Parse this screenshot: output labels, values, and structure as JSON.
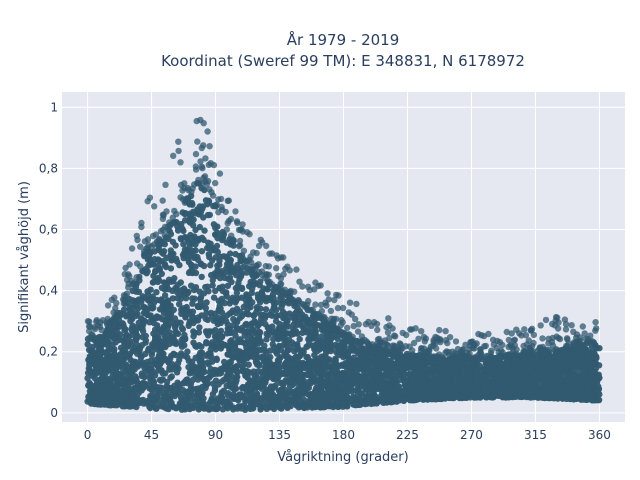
{
  "chart_data": {
    "type": "scatter",
    "title_line1": "År 1979 - 2019",
    "title_line2": "Koordinat (Sweref 99 TM): E 348831, N 6178972",
    "xlabel": "Vågriktning (grader)",
    "ylabel": "Signifikant våghöjd (m)",
    "xlim": [
      -18,
      378
    ],
    "ylim": [
      -0.03,
      1.05
    ],
    "x_ticks": [
      0,
      45,
      90,
      135,
      180,
      225,
      270,
      315,
      360
    ],
    "y_ticks": [
      0,
      0.2,
      0.4,
      0.6,
      0.8,
      1
    ],
    "y_tick_labels": [
      "0",
      "0,2",
      "0,4",
      "0,6",
      "0,8",
      "1"
    ],
    "grid": true,
    "marker_color": "#325a70",
    "plot_background": "#e5e8f0",
    "upper_envelope": [
      {
        "x": 0,
        "y": 0.3
      },
      {
        "x": 10,
        "y": 0.33
      },
      {
        "x": 20,
        "y": 0.4
      },
      {
        "x": 30,
        "y": 0.52
      },
      {
        "x": 37,
        "y": 0.64
      },
      {
        "x": 45,
        "y": 0.72
      },
      {
        "x": 52,
        "y": 0.76
      },
      {
        "x": 60,
        "y": 0.85
      },
      {
        "x": 65,
        "y": 0.9
      },
      {
        "x": 72,
        "y": 0.93
      },
      {
        "x": 80,
        "y": 0.98
      },
      {
        "x": 85,
        "y": 0.93
      },
      {
        "x": 90,
        "y": 0.82
      },
      {
        "x": 100,
        "y": 0.7
      },
      {
        "x": 110,
        "y": 0.62
      },
      {
        "x": 120,
        "y": 0.58
      },
      {
        "x": 135,
        "y": 0.52
      },
      {
        "x": 150,
        "y": 0.46
      },
      {
        "x": 165,
        "y": 0.42
      },
      {
        "x": 180,
        "y": 0.38
      },
      {
        "x": 200,
        "y": 0.33
      },
      {
        "x": 225,
        "y": 0.29
      },
      {
        "x": 250,
        "y": 0.27
      },
      {
        "x": 270,
        "y": 0.26
      },
      {
        "x": 300,
        "y": 0.28
      },
      {
        "x": 330,
        "y": 0.32
      },
      {
        "x": 360,
        "y": 0.33
      }
    ],
    "band_upper": [
      {
        "x": 0,
        "y": 0.24
      },
      {
        "x": 10,
        "y": 0.25
      },
      {
        "x": 20,
        "y": 0.32
      },
      {
        "x": 30,
        "y": 0.38
      },
      {
        "x": 40,
        "y": 0.52
      },
      {
        "x": 50,
        "y": 0.55
      },
      {
        "x": 60,
        "y": 0.62
      },
      {
        "x": 70,
        "y": 0.7
      },
      {
        "x": 78,
        "y": 0.76
      },
      {
        "x": 85,
        "y": 0.74
      },
      {
        "x": 95,
        "y": 0.62
      },
      {
        "x": 110,
        "y": 0.5
      },
      {
        "x": 135,
        "y": 0.4
      },
      {
        "x": 160,
        "y": 0.32
      },
      {
        "x": 180,
        "y": 0.26
      },
      {
        "x": 210,
        "y": 0.2
      },
      {
        "x": 240,
        "y": 0.18
      },
      {
        "x": 270,
        "y": 0.18
      },
      {
        "x": 300,
        "y": 0.19
      },
      {
        "x": 330,
        "y": 0.2
      },
      {
        "x": 360,
        "y": 0.24
      }
    ],
    "band_lower": [
      {
        "x": 0,
        "y": 0.03
      },
      {
        "x": 60,
        "y": 0.01
      },
      {
        "x": 120,
        "y": 0.01
      },
      {
        "x": 180,
        "y": 0.02
      },
      {
        "x": 225,
        "y": 0.04
      },
      {
        "x": 270,
        "y": 0.05
      },
      {
        "x": 315,
        "y": 0.05
      },
      {
        "x": 360,
        "y": 0.04
      }
    ]
  }
}
